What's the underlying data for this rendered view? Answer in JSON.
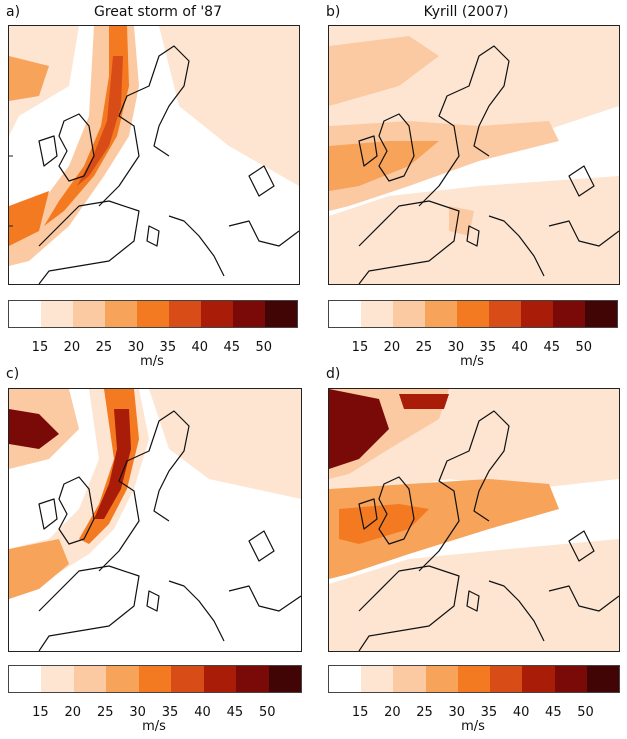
{
  "panels": [
    {
      "label": "a)",
      "title": "Great storm of '87"
    },
    {
      "label": "b)",
      "title": "Kyrill (2007)"
    },
    {
      "label": "c)",
      "title": ""
    },
    {
      "label": "d)",
      "title": ""
    }
  ],
  "legend": {
    "ticks": [
      "15",
      "20",
      "25",
      "30",
      "35",
      "40",
      "45",
      "50"
    ],
    "unit": "m/s",
    "colors": [
      "#ffffff",
      "#fde5d2",
      "#fbcaa2",
      "#f7a35a",
      "#f47a22",
      "#d84d17",
      "#a81c08",
      "#7a0a07",
      "#420505"
    ]
  }
}
